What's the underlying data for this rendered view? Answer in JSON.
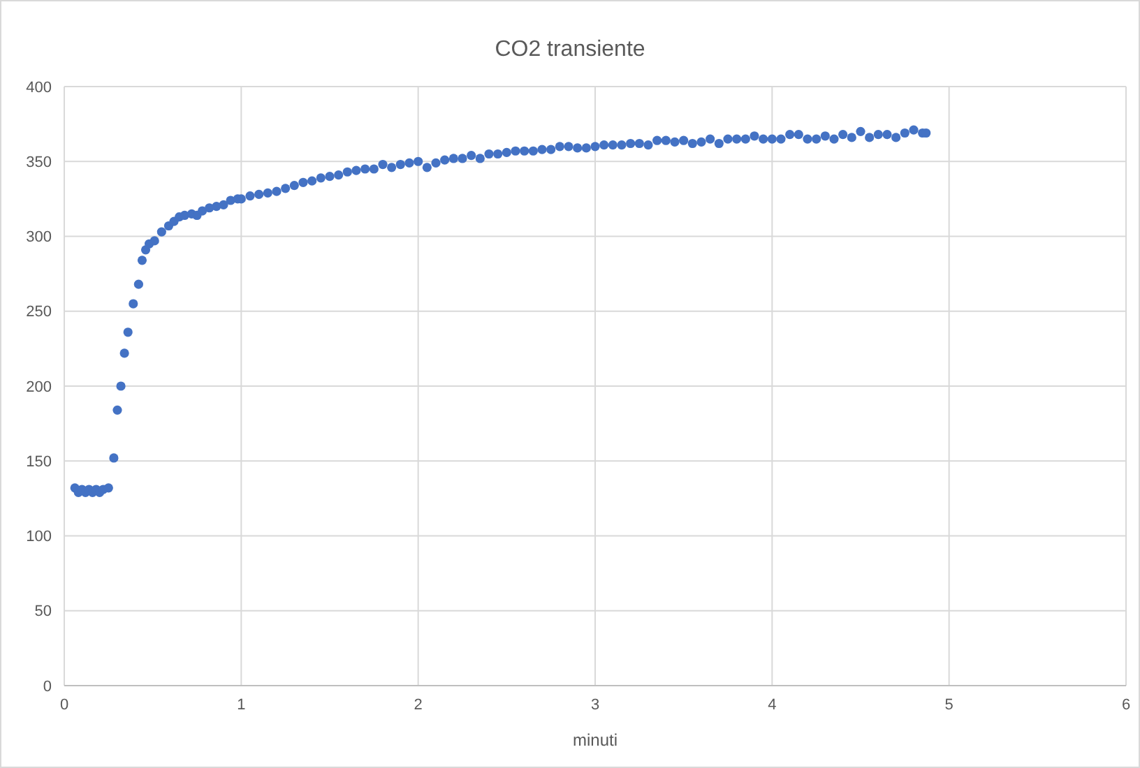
{
  "chart_data": {
    "type": "scatter",
    "title": "CO2 transiente",
    "xlabel": "minuti",
    "xlim": [
      0,
      6
    ],
    "xticks": [
      0,
      1,
      2,
      3,
      4,
      5,
      6
    ],
    "ylim": [
      0,
      400
    ],
    "yticks": [
      0,
      50,
      100,
      150,
      200,
      250,
      300,
      350,
      400
    ],
    "grid": true,
    "marker": "circle",
    "series": [
      {
        "color": "#4472c4",
        "x": [
          0.06,
          0.08,
          0.1,
          0.12,
          0.14,
          0.16,
          0.18,
          0.2,
          0.22,
          0.25,
          0.28,
          0.3,
          0.32,
          0.34,
          0.36,
          0.39,
          0.42,
          0.44,
          0.46,
          0.48,
          0.51,
          0.55,
          0.59,
          0.62,
          0.65,
          0.68,
          0.72,
          0.75,
          0.78,
          0.82,
          0.86,
          0.9,
          0.94,
          0.98,
          1.0,
          1.05,
          1.1,
          1.15,
          1.2,
          1.25,
          1.3,
          1.35,
          1.4,
          1.45,
          1.5,
          1.55,
          1.6,
          1.65,
          1.7,
          1.75,
          1.8,
          1.85,
          1.9,
          1.95,
          2.0,
          2.05,
          2.1,
          2.15,
          2.2,
          2.25,
          2.3,
          2.35,
          2.4,
          2.45,
          2.5,
          2.55,
          2.6,
          2.65,
          2.7,
          2.75,
          2.8,
          2.85,
          2.9,
          2.95,
          3.0,
          3.05,
          3.1,
          3.15,
          3.2,
          3.25,
          3.3,
          3.35,
          3.4,
          3.45,
          3.5,
          3.55,
          3.6,
          3.65,
          3.7,
          3.75,
          3.8,
          3.85,
          3.9,
          3.95,
          4.0,
          4.05,
          4.1,
          4.15,
          4.2,
          4.25,
          4.3,
          4.35,
          4.4,
          4.45,
          4.5,
          4.55,
          4.6,
          4.65,
          4.7,
          4.75,
          4.8,
          4.85,
          4.87
        ],
        "values": [
          132,
          129,
          131,
          129,
          131,
          129,
          131,
          129,
          131,
          132,
          152,
          184,
          200,
          222,
          236,
          255,
          268,
          284,
          291,
          295,
          297,
          303,
          307,
          310,
          313,
          314,
          315,
          314,
          317,
          319,
          320,
          321,
          324,
          325,
          325,
          327,
          328,
          329,
          330,
          332,
          334,
          336,
          337,
          339,
          340,
          341,
          343,
          344,
          345,
          345,
          348,
          346,
          348,
          349,
          350,
          346,
          349,
          351,
          352,
          352,
          354,
          352,
          355,
          355,
          356,
          357,
          357,
          357,
          358,
          358,
          360,
          360,
          359,
          359,
          360,
          361,
          361,
          361,
          362,
          362,
          361,
          364,
          364,
          363,
          364,
          362,
          363,
          365,
          362,
          365,
          365,
          365,
          367,
          365,
          365,
          365,
          368,
          368,
          365,
          365,
          367,
          365,
          368,
          366,
          370,
          366,
          368,
          368,
          366,
          369,
          371,
          369,
          369
        ]
      }
    ]
  }
}
